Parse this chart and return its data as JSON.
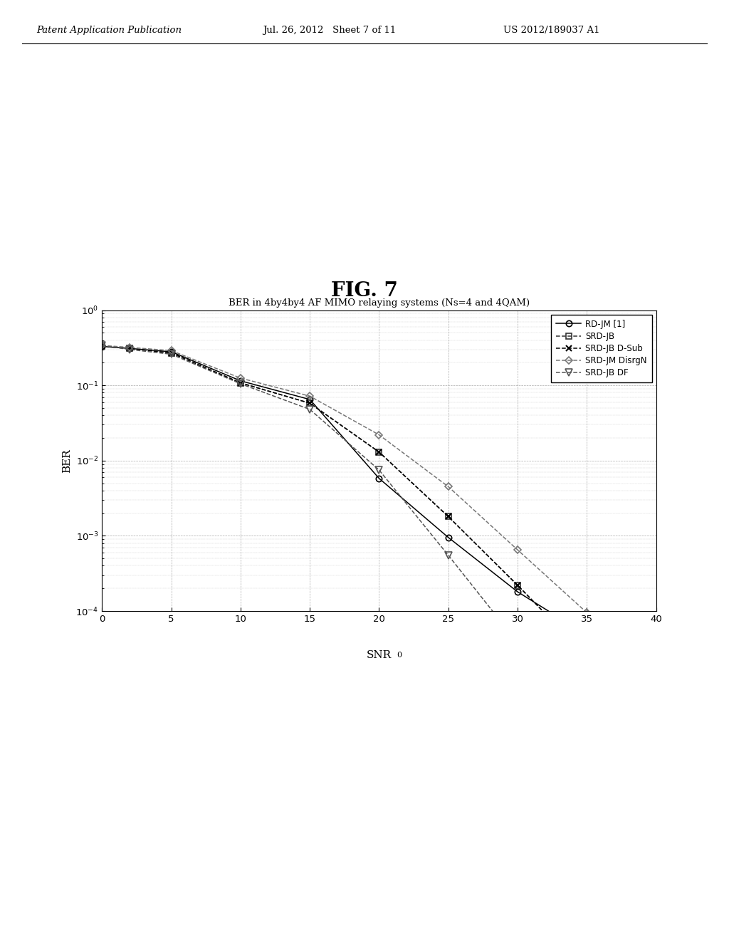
{
  "title": "BER in 4by4by4 AF MIMO relaying systems (Ns=4 and 4QAM)",
  "xlabel": "SNR_0",
  "ylabel": "BER",
  "fig_title": "FIG. 7",
  "header_left": "Patent Application Publication",
  "header_center": "Jul. 26, 2012   Sheet 7 of 11",
  "header_right": "US 2012/189037 A1",
  "xlim": [
    0,
    40
  ],
  "ylim_log_min": -4,
  "ylim_log_max": 0,
  "xticks": [
    0,
    5,
    10,
    15,
    20,
    25,
    30,
    35,
    40
  ],
  "series": [
    {
      "label": "RD-JM [1]",
      "marker": "o",
      "linestyle": "-",
      "color": "#000000",
      "x": [
        0,
        2,
        5,
        10,
        15,
        20,
        25,
        30,
        35,
        40
      ],
      "y": [
        0.33,
        0.31,
        0.28,
        0.115,
        0.065,
        0.0058,
        0.00095,
        0.00018,
        4.8e-05,
        1.1e-05
      ]
    },
    {
      "label": "SRD-JB",
      "marker": "s",
      "linestyle": "--",
      "color": "#333333",
      "x": [
        0,
        2,
        5,
        10,
        15,
        20,
        25,
        30,
        35,
        40
      ],
      "y": [
        0.33,
        0.31,
        0.27,
        0.108,
        0.058,
        0.013,
        0.0018,
        0.00022,
        2.5e-05,
        2.8e-06
      ]
    },
    {
      "label": "SRD-JB D-Sub",
      "marker": "x",
      "linestyle": "--",
      "color": "#000000",
      "x": [
        0,
        2,
        5,
        10,
        15,
        20,
        25,
        30,
        35,
        40
      ],
      "y": [
        0.33,
        0.31,
        0.27,
        0.108,
        0.058,
        0.013,
        0.0018,
        0.00022,
        2.5e-05,
        2.8e-06
      ]
    },
    {
      "label": "SRD-JM DisrgN",
      "marker": "D",
      "linestyle": "--",
      "color": "#777777",
      "x": [
        0,
        2,
        5,
        10,
        15,
        20,
        25,
        30,
        35,
        40
      ],
      "y": [
        0.34,
        0.32,
        0.29,
        0.125,
        0.072,
        0.022,
        0.0045,
        0.00065,
        9.5e-05,
        1.35e-05
      ]
    },
    {
      "label": "SRD-JB DF",
      "marker": "v",
      "linestyle": "--",
      "color": "#555555",
      "x": [
        0,
        2,
        5,
        10,
        15,
        20,
        25,
        30,
        35,
        40
      ],
      "y": [
        0.34,
        0.3,
        0.26,
        0.105,
        0.048,
        0.0075,
        0.00055,
        3.8e-05,
        2.8e-06,
        2.2e-07
      ]
    }
  ]
}
